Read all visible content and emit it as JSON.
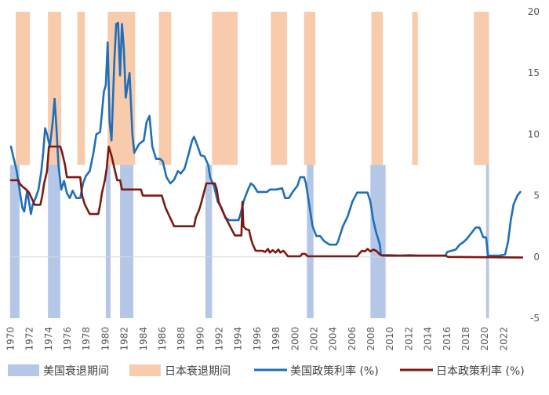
{
  "chart_data": {
    "type": "line",
    "title": "",
    "xlabel": "",
    "ylabel": "",
    "xlim": [
      1970,
      2024
    ],
    "ylim": [
      -5,
      20
    ],
    "y_ticks": [
      "-5",
      "0",
      "5",
      "10",
      "15",
      "20"
    ],
    "x_ticks": [
      "1970",
      "1972",
      "1974",
      "1976",
      "1978",
      "1980",
      "1982",
      "1984",
      "1986",
      "1988",
      "1990",
      "1992",
      "1994",
      "1996",
      "1998",
      "2000",
      "2002",
      "2004",
      "2006",
      "2008",
      "2010",
      "2012",
      "2014",
      "2016",
      "2018",
      "2020",
      "2022"
    ],
    "grid": false,
    "legend_position": "bottom",
    "recession_bands": {
      "us": {
        "name": "美国衰退期间",
        "color": "#b4c7e7",
        "y_range": [
          -5,
          7.5
        ],
        "periods": [
          [
            1969.9,
            1970.9
          ],
          [
            1973.9,
            1975.2
          ],
          [
            1980.0,
            1980.5
          ],
          [
            1981.5,
            1982.9
          ],
          [
            1990.5,
            1991.2
          ],
          [
            2001.2,
            2001.9
          ],
          [
            2007.9,
            2009.5
          ],
          [
            2020.1,
            2020.4
          ]
        ]
      },
      "japan": {
        "name": "日本衰退期间",
        "color": "#f8cbad",
        "y_range": [
          7.5,
          20
        ],
        "periods": [
          [
            1970.5,
            1972.0
          ],
          [
            1973.9,
            1975.3
          ],
          [
            1977.0,
            1977.8
          ],
          [
            1980.2,
            1983.1
          ],
          [
            1985.6,
            1986.9
          ],
          [
            1991.2,
            1993.9
          ],
          [
            1997.4,
            1999.1
          ],
          [
            2000.9,
            2002.1
          ],
          [
            2008.0,
            2009.2
          ],
          [
            2012.3,
            2012.9
          ],
          [
            2018.8,
            2020.4
          ]
        ]
      }
    },
    "series": [
      {
        "name": "美国政策利率 (%)",
        "color": "#1f6fb8",
        "points": [
          [
            1970.0,
            9.0
          ],
          [
            1970.3,
            8.0
          ],
          [
            1970.6,
            7.0
          ],
          [
            1970.9,
            5.5
          ],
          [
            1971.2,
            4.0
          ],
          [
            1971.4,
            3.7
          ],
          [
            1971.7,
            5.4
          ],
          [
            1971.9,
            4.5
          ],
          [
            1972.1,
            3.5
          ],
          [
            1972.3,
            4.3
          ],
          [
            1972.6,
            4.8
          ],
          [
            1972.9,
            5.5
          ],
          [
            1973.2,
            7.0
          ],
          [
            1973.4,
            8.5
          ],
          [
            1973.6,
            10.5
          ],
          [
            1973.8,
            10.0
          ],
          [
            1974.1,
            9.0
          ],
          [
            1974.4,
            11.0
          ],
          [
            1974.6,
            12.9
          ],
          [
            1974.8,
            10.5
          ],
          [
            1975.0,
            7.5
          ],
          [
            1975.3,
            5.5
          ],
          [
            1975.6,
            6.2
          ],
          [
            1975.9,
            5.2
          ],
          [
            1976.2,
            4.8
          ],
          [
            1976.5,
            5.4
          ],
          [
            1976.9,
            4.8
          ],
          [
            1977.3,
            4.8
          ],
          [
            1977.6,
            6.0
          ],
          [
            1977.9,
            6.6
          ],
          [
            1978.3,
            7.0
          ],
          [
            1978.7,
            8.5
          ],
          [
            1979.0,
            10.0
          ],
          [
            1979.4,
            10.2
          ],
          [
            1979.8,
            13.5
          ],
          [
            1980.0,
            14.0
          ],
          [
            1980.2,
            17.5
          ],
          [
            1980.4,
            11.0
          ],
          [
            1980.6,
            9.5
          ],
          [
            1980.9,
            16.0
          ],
          [
            1981.1,
            19.0
          ],
          [
            1981.3,
            19.1
          ],
          [
            1981.5,
            14.8
          ],
          [
            1981.7,
            19.0
          ],
          [
            1981.9,
            17.0
          ],
          [
            1982.1,
            13.0
          ],
          [
            1982.3,
            14.0
          ],
          [
            1982.5,
            15.0
          ],
          [
            1982.8,
            10.0
          ],
          [
            1983.0,
            8.5
          ],
          [
            1983.5,
            9.2
          ],
          [
            1984.0,
            9.5
          ],
          [
            1984.3,
            11.0
          ],
          [
            1984.6,
            11.5
          ],
          [
            1984.9,
            9.0
          ],
          [
            1985.3,
            8.0
          ],
          [
            1985.7,
            8.0
          ],
          [
            1986.0,
            7.8
          ],
          [
            1986.4,
            6.5
          ],
          [
            1986.8,
            6.0
          ],
          [
            1987.2,
            6.3
          ],
          [
            1987.6,
            7.0
          ],
          [
            1987.9,
            6.8
          ],
          [
            1988.3,
            7.2
          ],
          [
            1988.7,
            8.3
          ],
          [
            1989.1,
            9.5
          ],
          [
            1989.3,
            9.8
          ],
          [
            1989.7,
            9.0
          ],
          [
            1990.0,
            8.3
          ],
          [
            1990.4,
            8.2
          ],
          [
            1990.8,
            7.5
          ],
          [
            1991.0,
            6.5
          ],
          [
            1991.4,
            5.8
          ],
          [
            1991.8,
            4.5
          ],
          [
            1992.2,
            4.0
          ],
          [
            1992.6,
            3.2
          ],
          [
            1993.0,
            3.0
          ],
          [
            1993.5,
            3.0
          ],
          [
            1994.0,
            3.0
          ],
          [
            1994.2,
            3.5
          ],
          [
            1994.6,
            4.7
          ],
          [
            1995.0,
            5.5
          ],
          [
            1995.3,
            6.0
          ],
          [
            1995.6,
            5.8
          ],
          [
            1996.0,
            5.3
          ],
          [
            1996.5,
            5.3
          ],
          [
            1997.0,
            5.3
          ],
          [
            1997.3,
            5.5
          ],
          [
            1998.0,
            5.5
          ],
          [
            1998.6,
            5.6
          ],
          [
            1998.9,
            4.8
          ],
          [
            1999.3,
            4.8
          ],
          [
            1999.7,
            5.3
          ],
          [
            2000.2,
            5.8
          ],
          [
            2000.5,
            6.5
          ],
          [
            2000.9,
            6.5
          ],
          [
            2001.1,
            6.0
          ],
          [
            2001.4,
            4.5
          ],
          [
            2001.8,
            2.5
          ],
          [
            2002.2,
            1.7
          ],
          [
            2002.6,
            1.7
          ],
          [
            2003.0,
            1.3
          ],
          [
            2003.6,
            1.0
          ],
          [
            2004.3,
            1.0
          ],
          [
            2004.5,
            1.3
          ],
          [
            2005.0,
            2.5
          ],
          [
            2005.5,
            3.3
          ],
          [
            2006.0,
            4.5
          ],
          [
            2006.5,
            5.25
          ],
          [
            2007.0,
            5.25
          ],
          [
            2007.6,
            5.25
          ],
          [
            2007.9,
            4.5
          ],
          [
            2008.2,
            3.0
          ],
          [
            2008.5,
            2.0
          ],
          [
            2008.9,
            1.0
          ],
          [
            2009.0,
            0.15
          ],
          [
            2010.0,
            0.15
          ],
          [
            2011.0,
            0.1
          ],
          [
            2012.0,
            0.15
          ],
          [
            2013.0,
            0.1
          ],
          [
            2014.0,
            0.1
          ],
          [
            2015.8,
            0.1
          ],
          [
            2016.0,
            0.4
          ],
          [
            2016.9,
            0.6
          ],
          [
            2017.3,
            1.0
          ],
          [
            2017.7,
            1.2
          ],
          [
            2018.1,
            1.5
          ],
          [
            2018.6,
            2.0
          ],
          [
            2019.0,
            2.4
          ],
          [
            2019.4,
            2.4
          ],
          [
            2019.8,
            1.6
          ],
          [
            2020.1,
            1.6
          ],
          [
            2020.3,
            0.1
          ],
          [
            2021.5,
            0.1
          ],
          [
            2022.1,
            0.2
          ],
          [
            2022.4,
            1.2
          ],
          [
            2022.7,
            3.0
          ],
          [
            2023.0,
            4.3
          ],
          [
            2023.4,
            5.0
          ],
          [
            2023.7,
            5.3
          ]
        ]
      },
      {
        "name": "日本政策利率 (%)",
        "color": "#7b1a12",
        "points": [
          [
            1970.0,
            6.25
          ],
          [
            1970.8,
            6.25
          ],
          [
            1970.9,
            6.0
          ],
          [
            1971.2,
            5.75
          ],
          [
            1971.6,
            5.5
          ],
          [
            1971.9,
            5.25
          ],
          [
            1972.2,
            4.75
          ],
          [
            1972.5,
            4.25
          ],
          [
            1973.1,
            4.25
          ],
          [
            1973.3,
            5.0
          ],
          [
            1973.5,
            6.0
          ],
          [
            1973.8,
            7.0
          ],
          [
            1974.0,
            9.0
          ],
          [
            1975.2,
            9.0
          ],
          [
            1975.4,
            8.5
          ],
          [
            1975.7,
            7.5
          ],
          [
            1975.9,
            6.5
          ],
          [
            1977.3,
            6.5
          ],
          [
            1977.5,
            5.0
          ],
          [
            1977.8,
            4.25
          ],
          [
            1978.3,
            3.5
          ],
          [
            1979.2,
            3.5
          ],
          [
            1979.4,
            4.25
          ],
          [
            1979.6,
            5.25
          ],
          [
            1979.9,
            6.25
          ],
          [
            1980.1,
            7.25
          ],
          [
            1980.3,
            9.0
          ],
          [
            1980.6,
            8.25
          ],
          [
            1980.9,
            7.25
          ],
          [
            1981.2,
            6.25
          ],
          [
            1981.5,
            6.25
          ],
          [
            1981.7,
            5.5
          ],
          [
            1983.7,
            5.5
          ],
          [
            1983.9,
            5.0
          ],
          [
            1985.9,
            5.0
          ],
          [
            1986.1,
            4.5
          ],
          [
            1986.3,
            4.0
          ],
          [
            1986.6,
            3.5
          ],
          [
            1986.9,
            3.0
          ],
          [
            1987.2,
            2.5
          ],
          [
            1989.3,
            2.5
          ],
          [
            1989.5,
            3.25
          ],
          [
            1989.8,
            3.75
          ],
          [
            1990.0,
            4.25
          ],
          [
            1990.6,
            6.0
          ],
          [
            1991.5,
            6.0
          ],
          [
            1991.7,
            5.5
          ],
          [
            1991.9,
            4.5
          ],
          [
            1992.3,
            3.75
          ],
          [
            1992.6,
            3.25
          ],
          [
            1993.1,
            2.5
          ],
          [
            1993.6,
            1.75
          ],
          [
            1994.3,
            1.75
          ],
          [
            1994.4,
            4.5
          ],
          [
            1994.5,
            2.5
          ],
          [
            1994.8,
            2.25
          ],
          [
            1995.1,
            2.2
          ],
          [
            1995.3,
            1.5
          ],
          [
            1995.5,
            1.0
          ],
          [
            1995.8,
            0.5
          ],
          [
            1996.5,
            0.5
          ],
          [
            1996.8,
            0.4
          ],
          [
            1997.1,
            0.65
          ],
          [
            1997.3,
            0.35
          ],
          [
            1997.6,
            0.55
          ],
          [
            1997.9,
            0.35
          ],
          [
            1998.2,
            0.6
          ],
          [
            1998.4,
            0.35
          ],
          [
            1998.7,
            0.5
          ],
          [
            1998.9,
            0.35
          ],
          [
            1999.2,
            0.05
          ],
          [
            2000.5,
            0.05
          ],
          [
            2000.7,
            0.25
          ],
          [
            2001.0,
            0.25
          ],
          [
            2001.3,
            0.05
          ],
          [
            2006.5,
            0.05
          ],
          [
            2006.7,
            0.25
          ],
          [
            2007.0,
            0.5
          ],
          [
            2007.3,
            0.45
          ],
          [
            2007.6,
            0.65
          ],
          [
            2007.9,
            0.45
          ],
          [
            2008.2,
            0.6
          ],
          [
            2008.5,
            0.5
          ],
          [
            2008.9,
            0.2
          ],
          [
            2009.1,
            0.1
          ],
          [
            2015.8,
            0.1
          ],
          [
            2016.1,
            0.0
          ],
          [
            2023.9,
            -0.05
          ]
        ]
      }
    ]
  }
}
